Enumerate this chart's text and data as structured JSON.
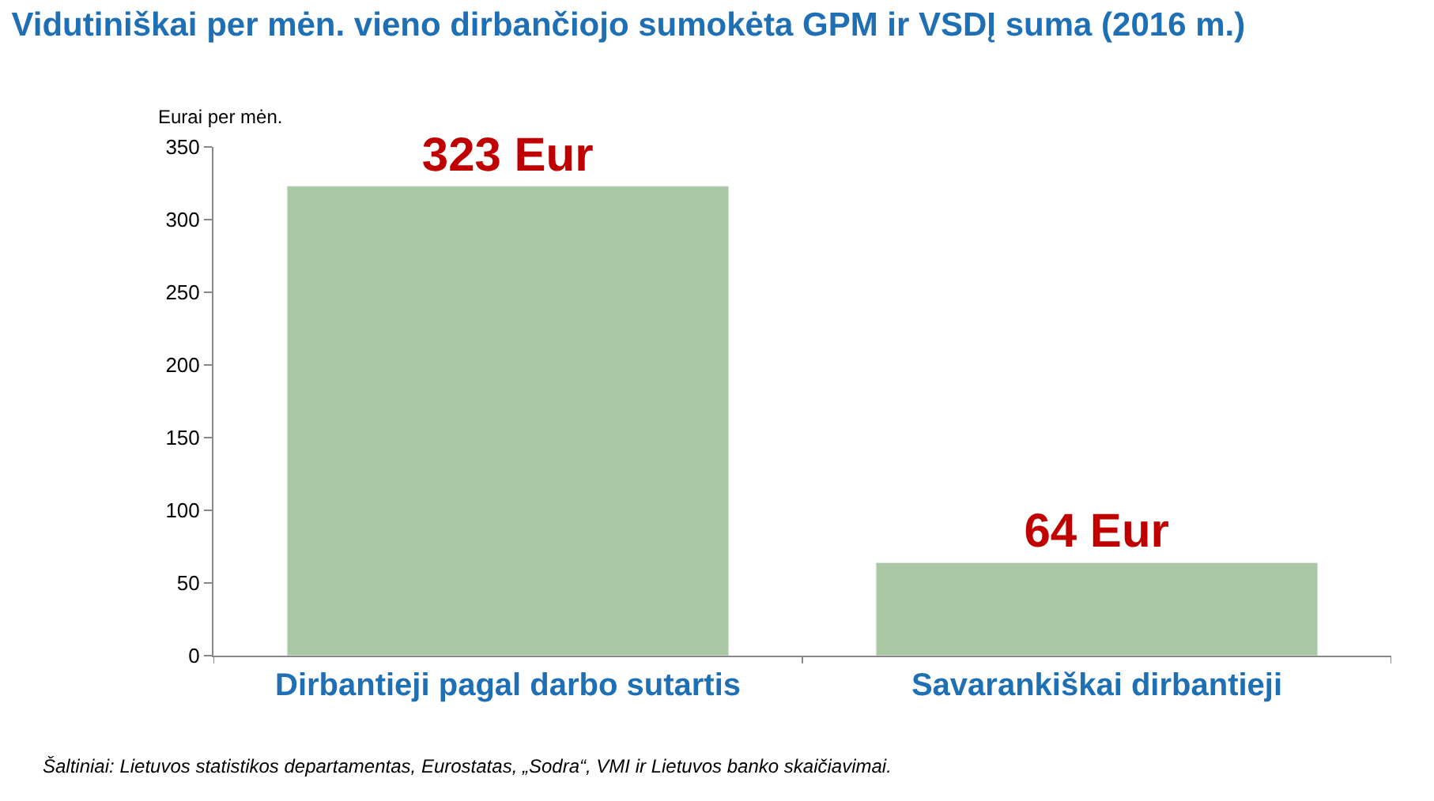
{
  "chart_data": {
    "type": "bar",
    "title": "Vidutiniškai per mėn. vieno dirbančiojo sumokėta GPM ir VSDĮ suma (2016 m.)",
    "ylabel": "Eurai per mėn.",
    "categories": [
      "Dirbantieji pagal darbo sutartis",
      "Savarankiškai dirbantieji"
    ],
    "values": [
      323,
      64
    ],
    "value_labels": [
      "323 Eur",
      "64 Eur"
    ],
    "color": "#aac8a4",
    "ylim": [
      0,
      350
    ],
    "yticks": [
      0,
      50,
      100,
      150,
      200,
      250,
      300,
      350
    ],
    "annotations": [
      "Šaltiniai: Lietuvos statistikos departamentas, Eurostatas, „Sodra“, VMI ir Lietuvos banko skaičiavimai."
    ]
  }
}
